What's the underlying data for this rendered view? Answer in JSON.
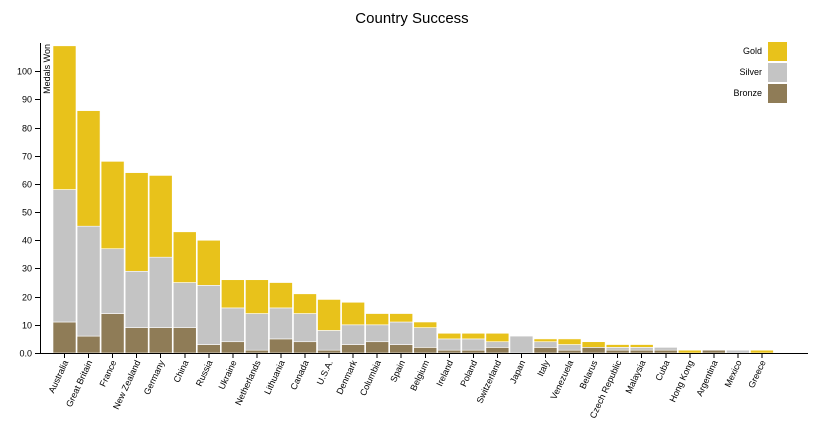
{
  "chart_data": {
    "type": "bar",
    "stacked": true,
    "title": "Country Success",
    "xlabel": "",
    "ylabel": "Medals Won",
    "ylim": [
      0,
      110
    ],
    "yticks": [
      "0.0",
      "10",
      "20",
      "30",
      "40",
      "50",
      "60",
      "70",
      "80",
      "90",
      "100"
    ],
    "grid": false,
    "legend_position": "top-right",
    "categories": [
      "Australia",
      "Great Britain",
      "France",
      "New Zealand",
      "Germany",
      "China",
      "Russia",
      "Ukraine",
      "Netherlands",
      "Lithuania",
      "Canada",
      "U.S.A.",
      "Denmark",
      "Columbia",
      "Spain",
      "Belgium",
      "Ireland",
      "Poland",
      "Switzerland",
      "Japan",
      "Italy",
      "Venezuela",
      "Belarus",
      "Czech Republic",
      "Malaysia",
      "Cuba",
      "Hong Kong",
      "Argentina",
      "Mexico",
      "Greece"
    ],
    "series": [
      {
        "name": "Bronze",
        "color": "#8f7c57",
        "values": [
          11,
          6,
          14,
          9,
          9,
          9,
          3,
          4,
          1,
          5,
          4,
          1,
          3,
          4,
          3,
          2,
          1,
          1,
          2,
          0,
          2,
          1,
          2,
          1,
          1,
          1,
          0,
          1,
          0,
          0
        ]
      },
      {
        "name": "Silver",
        "color": "#c4c4c4",
        "values": [
          47,
          39,
          23,
          20,
          25,
          16,
          21,
          12,
          13,
          11,
          10,
          7,
          7,
          6,
          8,
          7,
          4,
          4,
          2,
          6,
          2,
          2,
          0,
          1,
          1,
          1,
          0,
          0,
          1,
          0
        ]
      },
      {
        "name": "Gold",
        "color": "#e8c21b",
        "values": [
          51,
          41,
          31,
          35,
          29,
          18,
          16,
          10,
          12,
          9,
          7,
          11,
          8,
          4,
          3,
          2,
          2,
          2,
          3,
          0,
          1,
          2,
          2,
          1,
          1,
          0,
          1,
          0,
          0,
          1
        ]
      }
    ],
    "legend": [
      {
        "label": "Gold",
        "color": "#e8c21b"
      },
      {
        "label": "Silver",
        "color": "#c4c4c4"
      },
      {
        "label": "Bronze",
        "color": "#8f7c57"
      }
    ]
  }
}
